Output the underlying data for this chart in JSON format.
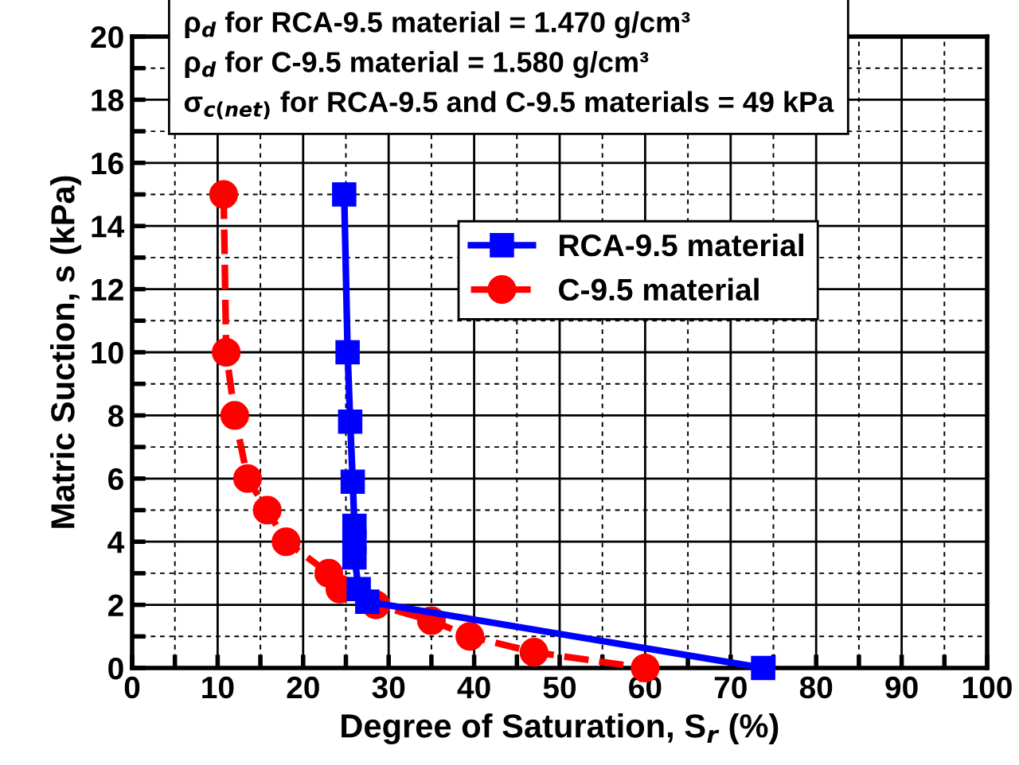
{
  "chart_data": {
    "type": "line",
    "xlabel": "Degree of Saturation, S$_{r}$ (%)",
    "ylabel": "Matric Suction, s (kPa)",
    "annotations": [
      "ρ$_{d}$ for RCA-9.5 material = 1.470 g/cm³",
      "ρ$_{d}$ for C-9.5 material = 1.580 g/cm³",
      "σ$_{c(net)}$ for RCA-9.5 and C-9.5 materials = 49 kPa"
    ],
    "series": [
      {
        "name": "RCA-9.5 material",
        "color": "#0000ff",
        "marker": "square",
        "line_style": "solid",
        "x": [
          24.8,
          25.2,
          25.5,
          25.8,
          26,
          26,
          26,
          26.5,
          27.5,
          73.8
        ],
        "values": [
          15,
          10,
          7.8,
          5.9,
          4.5,
          4,
          3.5,
          2.5,
          2.1,
          0
        ]
      },
      {
        "name": "C-9.5 material",
        "color": "#ff0000",
        "marker": "circle",
        "line_style": "dashed",
        "x": [
          10.7,
          11,
          12,
          13.5,
          15.8,
          18,
          23,
          24.3,
          28.5,
          35,
          39.5,
          47,
          60
        ],
        "values": [
          15,
          10,
          8,
          6,
          5,
          4,
          3,
          2.5,
          2,
          1.5,
          1,
          0.5,
          0
        ]
      }
    ],
    "xlim": [
      0,
      100
    ],
    "ylim": [
      0,
      20
    ],
    "xticks": [
      0,
      {
        "value": 5,
        "label": null
      },
      10,
      {
        "value": 15,
        "label": null
      },
      20,
      {
        "value": 25,
        "label": null
      },
      30,
      {
        "value": 35,
        "label": null
      },
      40,
      {
        "value": 45,
        "label": null
      },
      50,
      {
        "value": 55,
        "label": null
      },
      60,
      {
        "value": 65,
        "label": null
      },
      70,
      {
        "value": 75,
        "label": null
      },
      80,
      {
        "value": 85,
        "label": null
      },
      90,
      {
        "value": 95,
        "label": null
      },
      100
    ],
    "yticks": [
      0,
      {
        "value": 1,
        "label": null
      },
      2,
      {
        "value": 3,
        "label": null
      },
      4,
      {
        "value": 5,
        "label": null
      },
      6,
      {
        "value": 7,
        "label": null
      },
      8,
      {
        "value": 9,
        "label": null
      },
      10,
      {
        "value": 11,
        "label": null
      },
      12,
      {
        "value": 13,
        "label": null
      },
      14,
      {
        "value": 15,
        "label": null
      },
      16,
      {
        "value": 17,
        "label": null
      },
      18,
      {
        "value": 19,
        "label": null
      },
      20
    ],
    "grid": true,
    "legend": "right"
  }
}
